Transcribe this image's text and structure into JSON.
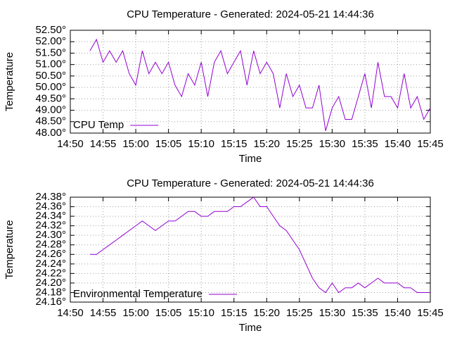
{
  "chart_data": [
    {
      "type": "line",
      "title": "CPU Temperature - Generated: 2024-05-21 14:44:36",
      "x_label": "Time",
      "y_label": "Temperature",
      "x": [
        "14:53",
        "14:54",
        "14:55",
        "14:56",
        "14:57",
        "14:58",
        "14:59",
        "15:00",
        "15:01",
        "15:02",
        "15:03",
        "15:04",
        "15:05",
        "15:06",
        "15:07",
        "15:08",
        "15:09",
        "15:10",
        "15:11",
        "15:12",
        "15:13",
        "15:14",
        "15:15",
        "15:16",
        "15:17",
        "15:18",
        "15:19",
        "15:20",
        "15:21",
        "15:22",
        "15:23",
        "15:24",
        "15:25",
        "15:26",
        "15:27",
        "15:28",
        "15:29",
        "15:30",
        "15:31",
        "15:32",
        "15:33",
        "15:34",
        "15:35",
        "15:36",
        "15:37",
        "15:38",
        "15:39",
        "15:40",
        "15:41",
        "15:42",
        "15:43",
        "15:44",
        "15:45"
      ],
      "series": [
        {
          "name": "CPU Temp",
          "color": "#9400d3",
          "values": [
            51.6,
            52.1,
            51.1,
            51.6,
            51.1,
            51.6,
            50.6,
            50.1,
            51.6,
            50.6,
            51.1,
            50.6,
            51.1,
            50.1,
            49.6,
            50.6,
            50.1,
            51.1,
            49.6,
            51.1,
            51.6,
            50.6,
            51.1,
            51.6,
            50.1,
            51.6,
            50.6,
            51.1,
            50.6,
            49.1,
            50.6,
            49.6,
            50.1,
            49.1,
            49.1,
            50.1,
            48.1,
            49.1,
            49.6,
            48.6,
            48.6,
            49.6,
            50.6,
            49.1,
            51.1,
            49.6,
            49.6,
            49.1,
            50.6,
            49.1,
            49.6,
            48.6,
            49.1
          ]
        }
      ],
      "xlim": [
        "14:50",
        "15:45"
      ],
      "xticks": [
        "14:50",
        "14:55",
        "15:00",
        "15:05",
        "15:10",
        "15:15",
        "15:20",
        "15:25",
        "15:30",
        "15:35",
        "15:40",
        "15:45"
      ],
      "ylim": [
        48,
        52.5
      ],
      "yticks": [
        {
          "value": 48,
          "label": "48.00°"
        },
        {
          "value": 48.5,
          "label": "48.50°"
        },
        {
          "value": 49,
          "label": "49.00°"
        },
        {
          "value": 49.5,
          "label": "49.50°"
        },
        {
          "value": 50,
          "label": "50.00°"
        },
        {
          "value": 50.5,
          "label": "50.50°"
        },
        {
          "value": 51,
          "label": "51.00°"
        },
        {
          "value": 51.5,
          "label": "51.50°"
        },
        {
          "value": 52,
          "label": "52.00°"
        },
        {
          "value": 52.5,
          "label": "52.50°"
        }
      ],
      "grid": true,
      "legend": "bottom-left"
    },
    {
      "type": "line",
      "title": "CPU Temperature - Generated: 2024-05-21 14:44:36",
      "x_label": "Time",
      "y_label": "Temperature",
      "x": [
        "14:53",
        "14:54",
        "14:55",
        "14:56",
        "14:57",
        "14:58",
        "14:59",
        "15:00",
        "15:01",
        "15:02",
        "15:03",
        "15:04",
        "15:05",
        "15:06",
        "15:07",
        "15:08",
        "15:09",
        "15:10",
        "15:11",
        "15:12",
        "15:13",
        "15:14",
        "15:15",
        "15:16",
        "15:17",
        "15:18",
        "15:19",
        "15:20",
        "15:21",
        "15:22",
        "15:23",
        "15:24",
        "15:25",
        "15:26",
        "15:27",
        "15:28",
        "15:29",
        "15:30",
        "15:31",
        "15:32",
        "15:33",
        "15:34",
        "15:35",
        "15:36",
        "15:37",
        "15:38",
        "15:39",
        "15:40",
        "15:41",
        "15:42",
        "15:43",
        "15:44",
        "15:45"
      ],
      "series": [
        {
          "name": "Environmental Temperature",
          "color": "#9400d3",
          "values": [
            24.26,
            24.26,
            24.27,
            24.28,
            24.29,
            24.3,
            24.31,
            24.32,
            24.33,
            24.32,
            24.31,
            24.32,
            24.33,
            24.33,
            24.34,
            24.35,
            24.35,
            24.34,
            24.34,
            24.35,
            24.35,
            24.35,
            24.36,
            24.36,
            24.37,
            24.38,
            24.36,
            24.36,
            24.34,
            24.32,
            24.31,
            24.29,
            24.27,
            24.24,
            24.21,
            24.19,
            24.18,
            24.2,
            24.18,
            24.19,
            24.19,
            24.2,
            24.19,
            24.2,
            24.21,
            24.2,
            24.2,
            24.2,
            24.19,
            24.19,
            24.18,
            24.18,
            24.18
          ]
        }
      ],
      "xlim": [
        "14:50",
        "15:45"
      ],
      "xticks": [
        "14:50",
        "14:55",
        "15:00",
        "15:05",
        "15:10",
        "15:15",
        "15:20",
        "15:25",
        "15:30",
        "15:35",
        "15:40",
        "15:45"
      ],
      "ylim": [
        24.16,
        24.38
      ],
      "yticks": [
        {
          "value": 24.16,
          "label": "24.16°"
        },
        {
          "value": 24.18,
          "label": "24.18°"
        },
        {
          "value": 24.2,
          "label": "24.20°"
        },
        {
          "value": 24.22,
          "label": "24.22°"
        },
        {
          "value": 24.24,
          "label": "24.24°"
        },
        {
          "value": 24.26,
          "label": "24.26°"
        },
        {
          "value": 24.28,
          "label": "24.28°"
        },
        {
          "value": 24.3,
          "label": "24.30°"
        },
        {
          "value": 24.32,
          "label": "24.32°"
        },
        {
          "value": 24.34,
          "label": "24.34°"
        },
        {
          "value": 24.36,
          "label": "24.36°"
        },
        {
          "value": 24.38,
          "label": "24.38°"
        }
      ],
      "grid": true,
      "legend": "bottom-left"
    }
  ]
}
